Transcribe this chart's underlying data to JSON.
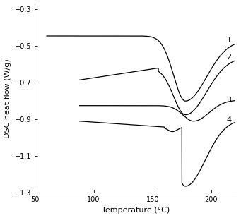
{
  "xlabel": "Temperature (°C)",
  "ylabel": "DSC heat flow (W/g)",
  "xlim": [
    50,
    222
  ],
  "ylim": [
    -1.3,
    -0.27
  ],
  "xticks": [
    50,
    100,
    150,
    200
  ],
  "yticks": [
    -1.3,
    -1.1,
    -0.9,
    -0.7,
    -0.5,
    -0.3
  ],
  "curve_color": "#000000",
  "background_color": "#ffffff",
  "label_fontsize": 8,
  "tick_fontsize": 7
}
